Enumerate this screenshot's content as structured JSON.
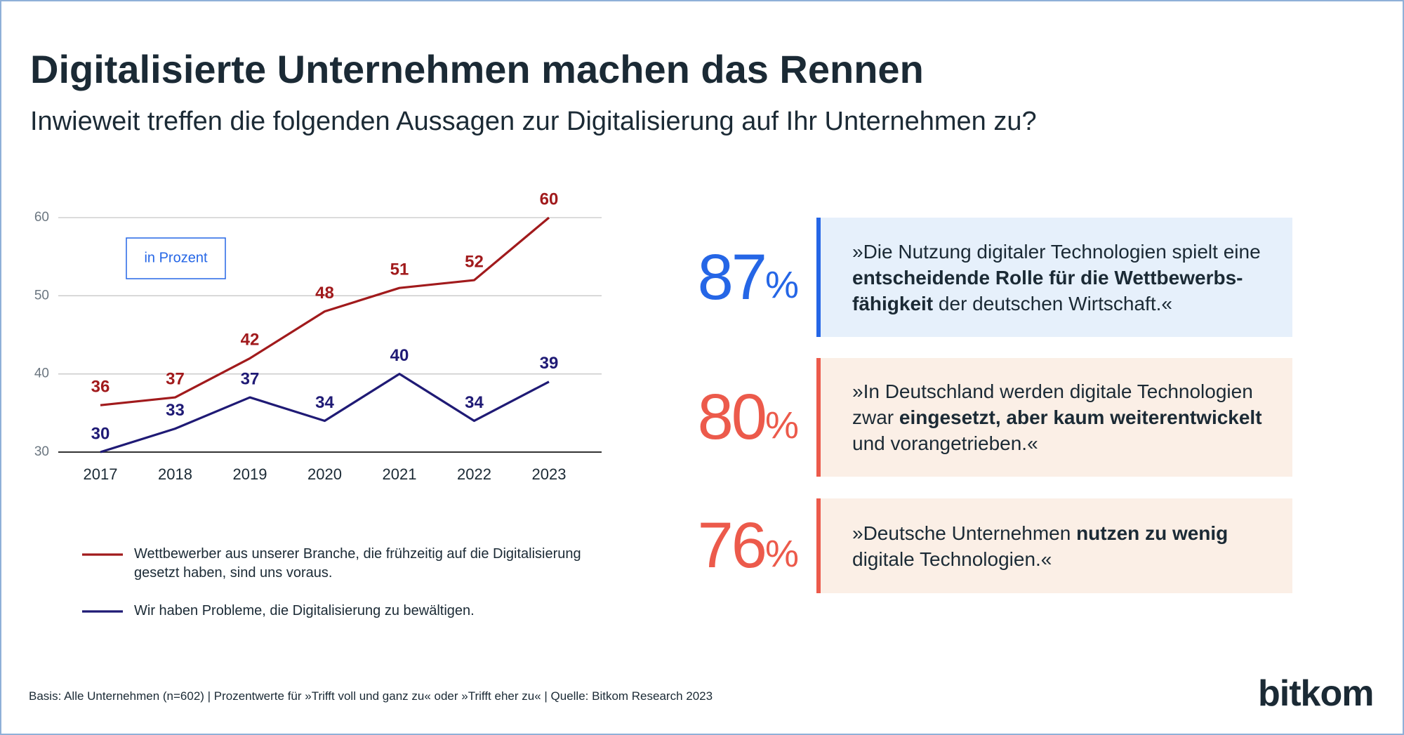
{
  "title": "Digitalisierte Unternehmen machen das Rennen",
  "subtitle": "Inwieweit treffen die folgenden Aussagen zur Digitalisierung auf Ihr Unternehmen zu?",
  "chart_data": {
    "type": "line",
    "categories": [
      "2017",
      "2018",
      "2019",
      "2020",
      "2021",
      "2022",
      "2023"
    ],
    "series": [
      {
        "name": "Wettbewerber aus unserer Branche, die frühzeitig auf die Digitalisierung gesetzt haben, sind uns voraus.",
        "color": "#a11a1c",
        "values": [
          36,
          37,
          42,
          48,
          51,
          52,
          60
        ]
      },
      {
        "name": "Wir haben Probleme, die Digitalisierung zu bewältigen.",
        "color": "#1f1a75",
        "values": [
          30,
          33,
          37,
          34,
          40,
          34,
          39
        ]
      }
    ],
    "ylim": [
      30,
      60
    ],
    "yticks": [
      30,
      40,
      50,
      60
    ],
    "grid": true,
    "annotation": "in Prozent"
  },
  "statements": [
    {
      "percent": 87,
      "unit": "%",
      "color": "#2566e6",
      "background": "#e6f0fb",
      "parts": [
        {
          "text": "»Die Nutzung digitaler Technologien spielt eine\n"
        },
        {
          "text": "entscheidende Rolle für die Wettbewerbs-\nfähigkeit",
          "bold": true
        },
        {
          "text": " der deutschen Wirtschaft.«"
        }
      ]
    },
    {
      "percent": 80,
      "unit": "%",
      "color": "#ec5a4b",
      "background": "#fbefe6",
      "parts": [
        {
          "text": "»In Deutschland werden digitale Technologien\nzwar "
        },
        {
          "text": "eingesetzt, aber kaum weiterentwickelt",
          "bold": true
        },
        {
          "text": "\nund vorangetrieben.«"
        }
      ]
    },
    {
      "percent": 76,
      "unit": "%",
      "color": "#ec5a4b",
      "background": "#fbefe6",
      "parts": [
        {
          "text": "»Deutsche Unternehmen "
        },
        {
          "text": "nutzen zu wenig",
          "bold": true
        },
        {
          "text": "\ndigitale Technologien.«"
        }
      ]
    }
  ],
  "footer": "Basis: Alle Unternehmen (n=602) | Prozentwerte für »Trifft voll und ganz zu« oder »Trifft eher zu« | Quelle: Bitkom Research 2023",
  "logo": "bitkom"
}
